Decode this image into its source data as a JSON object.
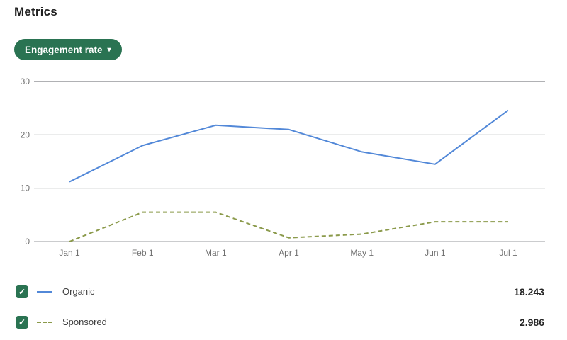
{
  "page": {
    "title": "Metrics"
  },
  "controls": {
    "metric_dropdown": {
      "label": "Engagement rate"
    }
  },
  "icons": {
    "dropdown_caret": "▾",
    "checkbox_check": "✓"
  },
  "chart_data": {
    "type": "line",
    "x": [
      "Jan 1",
      "Feb 1",
      "Mar 1",
      "Apr 1",
      "May 1",
      "Jun 1",
      "Jul 1"
    ],
    "series": [
      {
        "name": "Organic",
        "style": "solid",
        "color": "#5288d8",
        "values": [
          11.2,
          18.0,
          21.8,
          21.0,
          16.8,
          14.5,
          24.6
        ]
      },
      {
        "name": "Sponsored",
        "style": "dashed",
        "color": "#8b9a4b",
        "values": [
          0.0,
          5.5,
          5.5,
          0.7,
          1.4,
          3.7,
          3.7
        ]
      }
    ],
    "ylim": [
      0,
      30
    ],
    "yticks": [
      0,
      10,
      20,
      30
    ],
    "grid": true,
    "gridline_color": "#606368",
    "baseline_color": "#97999c",
    "tick_label_color": "#6f6f6f",
    "legend_position": "bottom"
  },
  "legend": {
    "items": [
      {
        "label": "Organic",
        "value": "18.243",
        "checked": true
      },
      {
        "label": "Sponsored",
        "value": "2.986",
        "checked": true
      }
    ]
  },
  "colors": {
    "accent_green": "#2a7352",
    "organic_blue": "#5288d8",
    "sponsored_olive": "#8b9a4b"
  }
}
